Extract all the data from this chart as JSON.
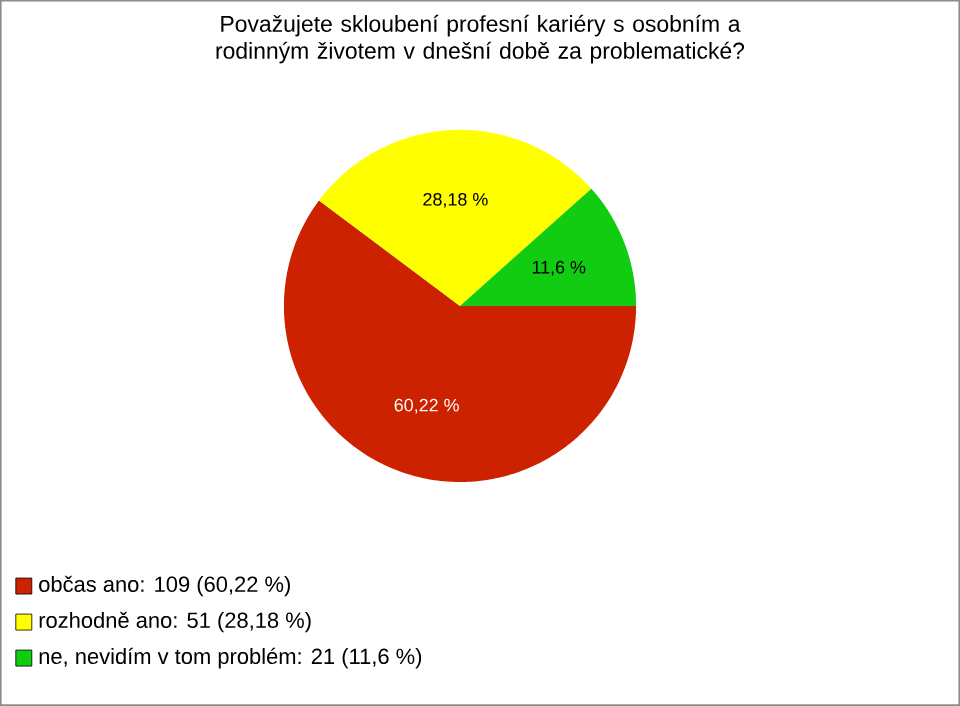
{
  "chart_data": {
    "type": "pie",
    "title": "Považujete skloubení profesní kariéry s osobním a rodinným životem v dnešní době za problematické?",
    "categories": [
      "občas ano: 109 (60,22 %)",
      "rozhodně ano: 51 (28,18 %)",
      "ne, nevidím v tom problém: 21 (11,6 %)"
    ],
    "values": [
      60.22,
      28.18,
      11.6
    ],
    "value_labels": [
      "60,22 %",
      "28,18 %",
      "11,6 %"
    ],
    "colors": [
      "#cc2200",
      "#ffff00",
      "#11cc11"
    ],
    "legend": "bottom left"
  }
}
